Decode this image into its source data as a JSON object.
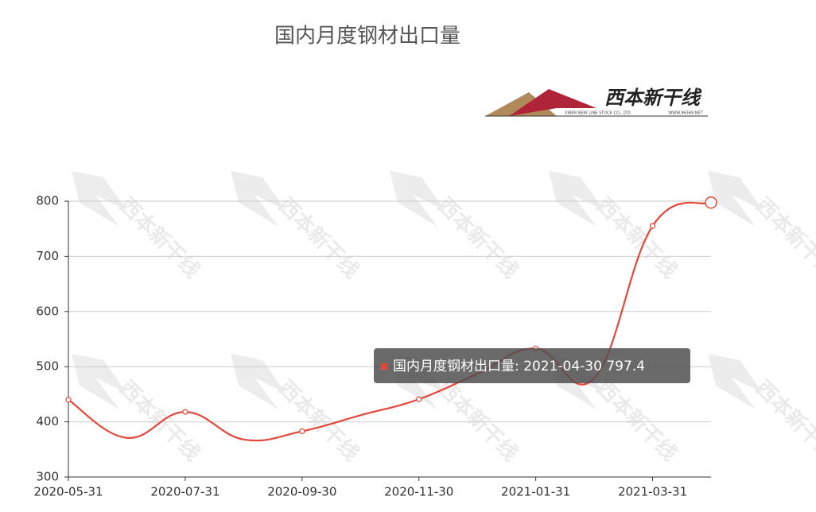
{
  "chart_data": {
    "type": "line",
    "title": "国内月度钢材出口量",
    "categories": [
      "2020-05-31",
      null,
      "2020-07-31",
      null,
      "2020-09-30",
      null,
      "2020-11-30",
      null,
      "2021-01-31",
      null,
      "2021-03-31",
      "2021-04-30"
    ],
    "values": [
      440,
      371,
      418,
      368,
      383,
      412,
      441,
      487,
      533,
      479,
      755,
      797.4
    ],
    "color": "#e5473b",
    "ylim": [
      300,
      800
    ],
    "yticks": [
      300,
      400,
      500,
      600,
      700,
      800
    ],
    "grid": true,
    "tooltip": "国内月度钢材出口量: 2021-04-30 797.4",
    "logo": {
      "name": "西本新干线",
      "subtitle": "XIBEN NEW LINE STOCK CO., LTD.",
      "site": "WWW.96369.NET"
    }
  }
}
